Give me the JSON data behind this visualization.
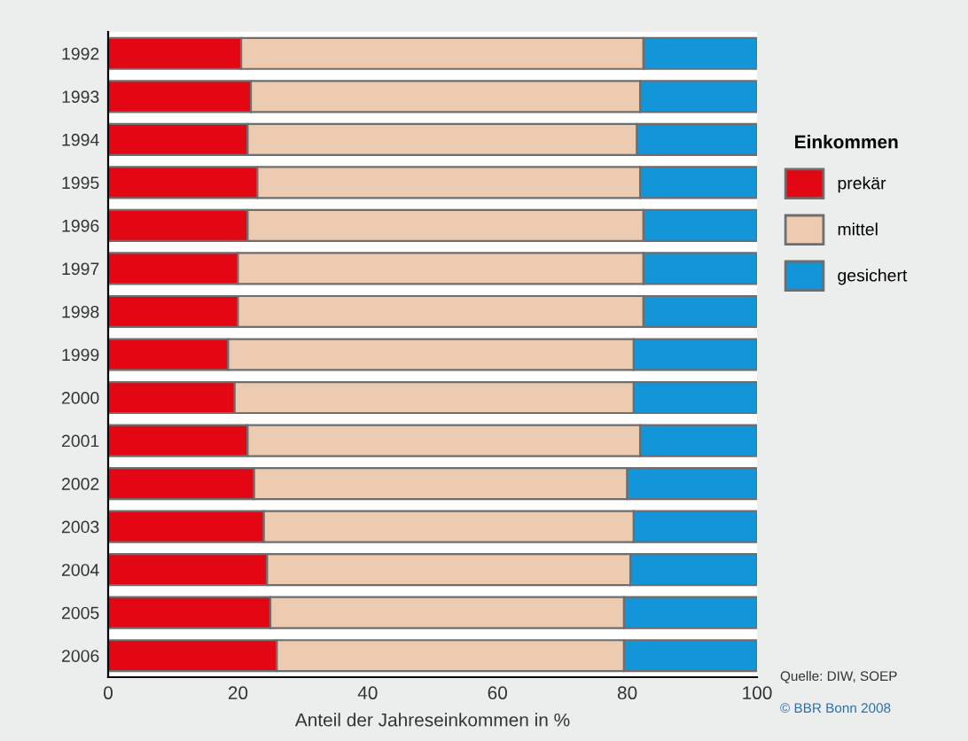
{
  "chart_data": {
    "type": "bar",
    "orientation": "horizontal",
    "stacked": true,
    "categories": [
      "1992",
      "1993",
      "1994",
      "1995",
      "1996",
      "1997",
      "1998",
      "1999",
      "2000",
      "2001",
      "2002",
      "2003",
      "2004",
      "2005",
      "2006"
    ],
    "series": [
      {
        "name": "prekär",
        "color": "#e30613",
        "values": [
          20.5,
          22,
          21.5,
          23,
          21.5,
          20,
          20,
          18.5,
          19.5,
          21.5,
          22.5,
          24,
          24.5,
          25,
          26
        ]
      },
      {
        "name": "mittel",
        "color": "#eccbb0",
        "values": [
          62,
          60,
          60,
          59,
          61,
          62.5,
          62.5,
          62.5,
          61.5,
          60.5,
          57.5,
          57,
          56,
          54.5,
          53.5
        ]
      },
      {
        "name": "gesichert",
        "color": "#1296d9",
        "values": [
          17.5,
          18,
          18.5,
          18,
          17.5,
          17.5,
          17.5,
          19,
          19,
          18,
          20,
          19,
          19.5,
          20.5,
          20.5
        ]
      }
    ],
    "xlim": [
      0,
      100
    ],
    "xticks": [
      0,
      20,
      40,
      60,
      80,
      100
    ],
    "xlabel": "Anteil der Jahreseinkommen in %",
    "legend_title": "Einkommen",
    "legend": "right",
    "grid": false,
    "annotations": [
      "Quelle: DIW, SOEP",
      "© BBR Bonn 2008"
    ]
  }
}
